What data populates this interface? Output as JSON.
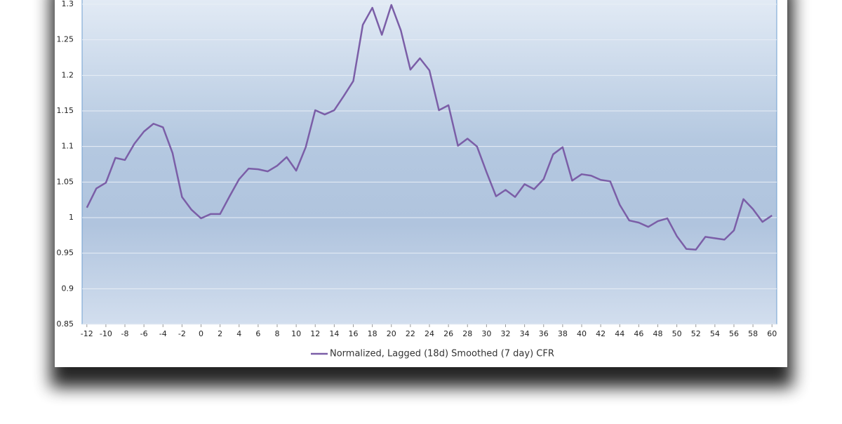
{
  "chart_data": {
    "type": "line",
    "x": [
      -12,
      -11,
      -10,
      -9,
      -8,
      -7,
      -6,
      -5,
      -4,
      -3,
      -2,
      -1,
      0,
      1,
      2,
      3,
      4,
      5,
      6,
      7,
      8,
      9,
      10,
      11,
      12,
      13,
      14,
      15,
      16,
      17,
      18,
      19,
      20,
      21,
      22,
      23,
      24,
      25,
      26,
      27,
      28,
      29,
      30,
      31,
      32,
      33,
      34,
      35,
      36,
      37,
      38,
      39,
      40,
      41,
      42,
      43,
      44,
      45,
      46,
      47,
      48,
      49,
      50,
      51,
      52,
      53,
      54,
      55,
      56,
      57,
      58,
      59,
      60
    ],
    "series": [
      {
        "name": "Normalized, Lagged (18d) Smoothed (7 day) CFR",
        "color": "#7b5ea7",
        "values": [
          1.014,
          1.041,
          1.049,
          1.084,
          1.081,
          1.104,
          1.121,
          1.132,
          1.127,
          1.091,
          1.029,
          1.011,
          0.999,
          1.005,
          1.005,
          1.03,
          1.054,
          1.069,
          1.068,
          1.065,
          1.073,
          1.085,
          1.066,
          1.099,
          1.151,
          1.145,
          1.151,
          1.171,
          1.192,
          1.271,
          1.295,
          1.257,
          1.299,
          1.263,
          1.208,
          1.224,
          1.207,
          1.151,
          1.158,
          1.101,
          1.111,
          1.1,
          1.064,
          1.03,
          1.039,
          1.029,
          1.047,
          1.04,
          1.054,
          1.089,
          1.099,
          1.052,
          1.061,
          1.059,
          1.053,
          1.051,
          1.018,
          0.996,
          0.993,
          0.987,
          0.995,
          0.999,
          0.974,
          0.956,
          0.955,
          0.973,
          0.971,
          0.969,
          0.982,
          1.026,
          1.012,
          0.994,
          1.003
        ]
      }
    ],
    "xlim": [
      -12.5,
      60.5
    ],
    "xticks": [
      -12,
      -10,
      -8,
      -6,
      -4,
      -2,
      0,
      2,
      4,
      6,
      8,
      10,
      12,
      14,
      16,
      18,
      20,
      22,
      24,
      26,
      28,
      30,
      32,
      34,
      36,
      38,
      40,
      42,
      44,
      46,
      48,
      50,
      52,
      54,
      56,
      58,
      60
    ],
    "ylim": [
      0.85,
      1.3
    ],
    "yticks": [
      0.85,
      0.9,
      0.95,
      1,
      1.05,
      1.1,
      1.15,
      1.2,
      1.25,
      1.3
    ],
    "grid": true,
    "legend": "bottom"
  }
}
